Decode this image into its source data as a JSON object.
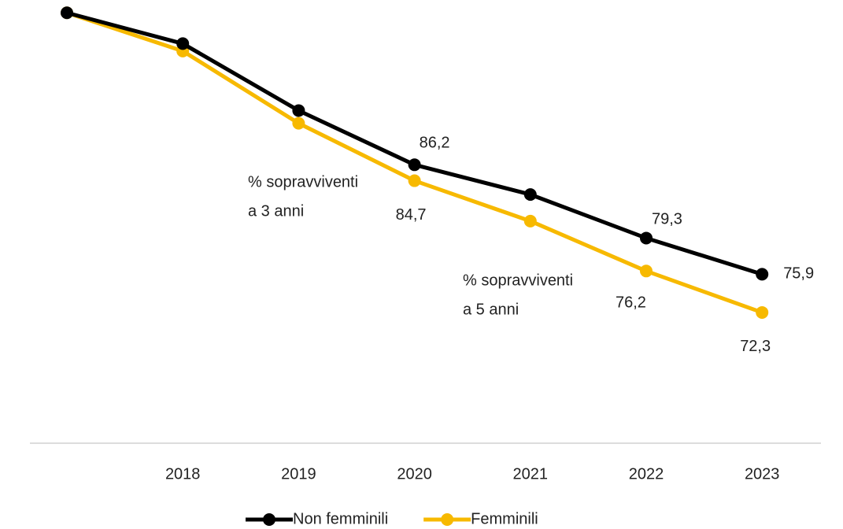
{
  "chart_data": {
    "type": "line",
    "categories": [
      null,
      "2018",
      "2019",
      "2020",
      "2021",
      "2022",
      "2023"
    ],
    "series": [
      {
        "name": "Non femminili",
        "color": "#000000",
        "values": [
          100.5,
          97.6,
          91.3,
          86.2,
          83.4,
          79.3,
          75.9
        ],
        "value_labels": [
          null,
          null,
          null,
          "86,2",
          null,
          "79,3",
          "75,9"
        ]
      },
      {
        "name": "Femminili",
        "color": "#f7b900",
        "values": [
          100.5,
          96.9,
          90.1,
          84.7,
          80.9,
          76.2,
          72.3
        ],
        "value_labels": [
          null,
          null,
          null,
          "84,7",
          null,
          "76,2",
          "72,3"
        ]
      }
    ],
    "ylim": [
      60,
      102
    ],
    "annotations": [
      {
        "lines": [
          "% sopravviventi",
          "a 3 anni"
        ]
      },
      {
        "lines": [
          "% sopravviventi",
          "a 5 anni"
        ]
      }
    ]
  }
}
